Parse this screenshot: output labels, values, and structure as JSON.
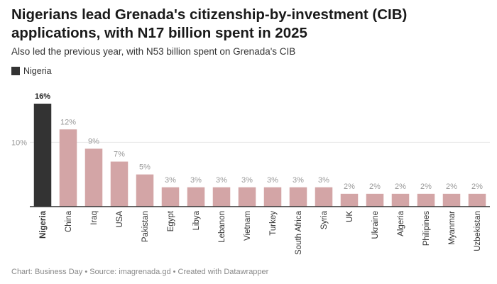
{
  "title": "Nigerians lead Grenada's citizenship-by-investment (CIB) applications, with N17 billion spent in 2025",
  "subtitle": "Also led the previous year, with N53 billion spent on Grenada's CIB",
  "legend": {
    "label": "Nigeria",
    "color": "#333333"
  },
  "footer": "Chart: Business Day • Source: imagrenada.gd • Created with Datawrapper",
  "colors": {
    "highlight": "#333333",
    "other": "#d3a5a6",
    "grid": "#e6e6e6",
    "axis": "#333333"
  },
  "chart_data": {
    "type": "bar",
    "categories": [
      "Nigeria",
      "China",
      "Iraq",
      "USA",
      "Pakistan",
      "Egypt",
      "Libya",
      "Lebanon",
      "Vietnam",
      "Turkey",
      "South Africa",
      "Syria",
      "UK",
      "Ukraine",
      "Algeria",
      "Philipines",
      "Myanmar",
      "Uzbekistan"
    ],
    "values": [
      16,
      12,
      9,
      7,
      5,
      3,
      3,
      3,
      3,
      3,
      3,
      3,
      2,
      2,
      2,
      2,
      2,
      2
    ],
    "labels": [
      "16%",
      "12%",
      "9%",
      "7%",
      "5%",
      "3%",
      "3%",
      "3%",
      "3%",
      "3%",
      "3%",
      "3%",
      "2%",
      "2%",
      "2%",
      "2%",
      "2%",
      "2%"
    ],
    "highlight": "Nigeria",
    "unit": "%",
    "ylim": [
      0,
      16
    ],
    "yticks": [
      {
        "value": 10,
        "label": "10%"
      }
    ],
    "grid": true
  }
}
